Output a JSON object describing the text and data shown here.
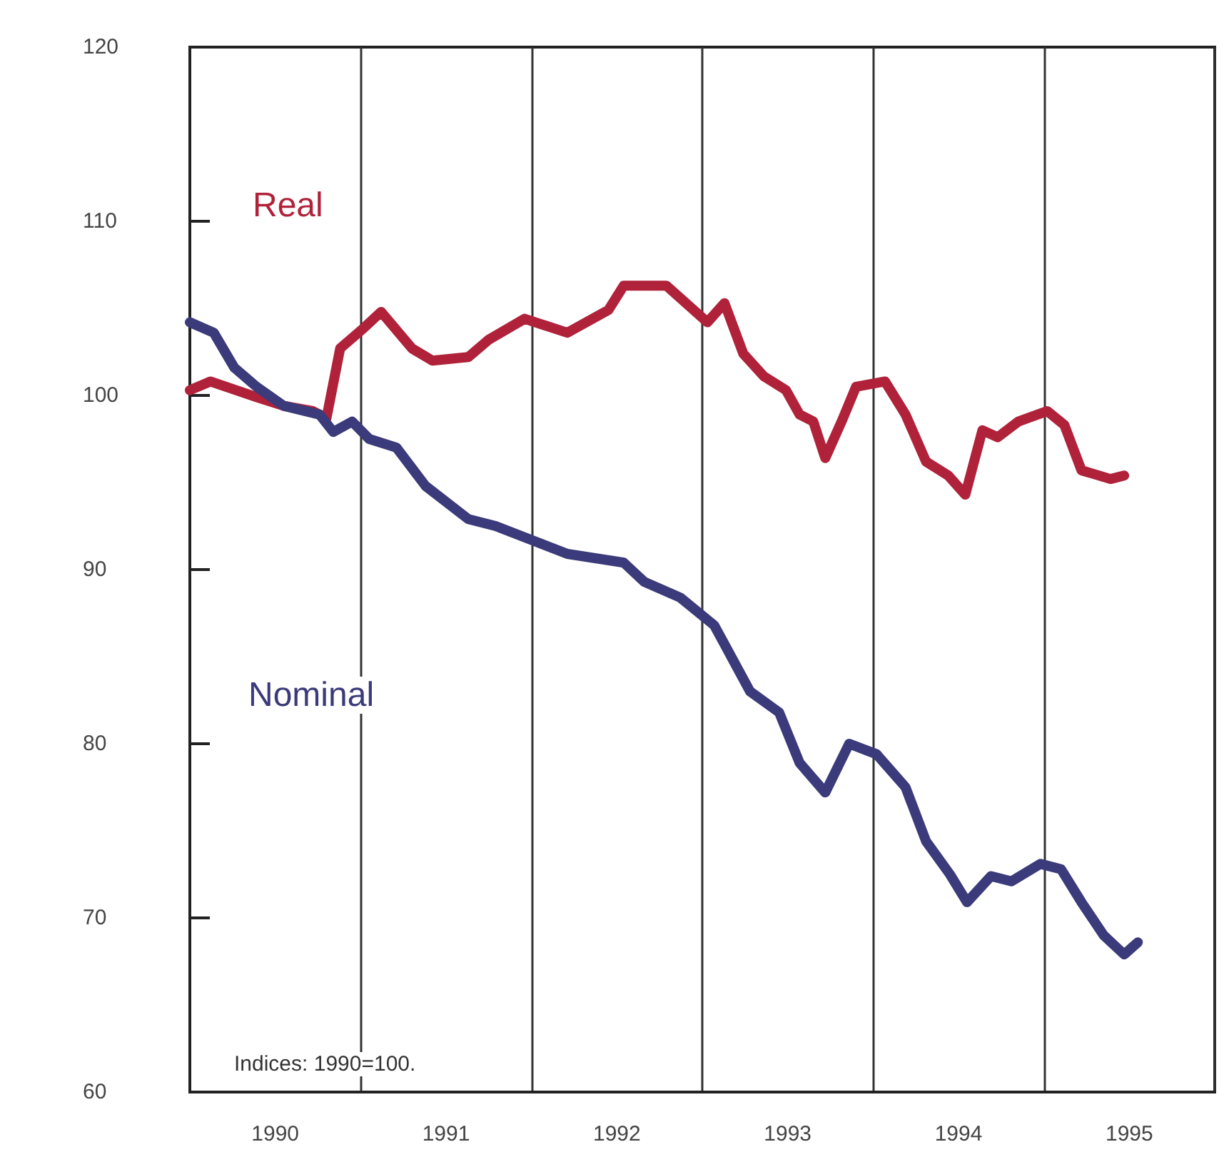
{
  "chart_data": {
    "type": "line",
    "annotations": [
      "Indices: 1990=100."
    ],
    "xlim": [
      1990,
      1996
    ],
    "xticks": [
      {
        "value": 1990,
        "label": null
      },
      {
        "value": 1990.5,
        "label": "1990"
      },
      {
        "value": 1991,
        "label": null
      },
      {
        "value": 1991.5,
        "label": "1991"
      },
      {
        "value": 1992,
        "label": null
      },
      {
        "value": 1992.5,
        "label": "1992"
      },
      {
        "value": 1993,
        "label": null
      },
      {
        "value": 1993.5,
        "label": "1993"
      },
      {
        "value": 1994,
        "label": null
      },
      {
        "value": 1994.5,
        "label": "1994"
      },
      {
        "value": 1995,
        "label": null
      },
      {
        "value": 1995.5,
        "label": "1995"
      },
      {
        "value": 1996,
        "label": null
      }
    ],
    "ylim": [
      60,
      120
    ],
    "yticks": [
      60,
      70,
      80,
      90,
      100,
      110,
      120
    ],
    "grid": "x",
    "legend": false,
    "marker": "none",
    "line_style": "solid",
    "series": [
      {
        "name": "Real",
        "color": "#b0223a",
        "x": [
          1990.0,
          1990.12,
          1990.39,
          1990.55,
          1990.72,
          1990.8,
          1990.88,
          1991.01,
          1991.12,
          1991.3,
          1991.42,
          1991.63,
          1991.75,
          1991.96,
          1992.21,
          1992.45,
          1992.54,
          1992.79,
          1993.03,
          1993.13,
          1993.24,
          1993.36,
          1993.49,
          1993.57,
          1993.65,
          1993.72,
          1993.82,
          1993.9,
          1994.07,
          1994.19,
          1994.31,
          1994.44,
          1994.54,
          1994.64,
          1994.73,
          1994.85,
          1995.02,
          1995.12,
          1995.22,
          1995.39,
          1995.47
        ],
        "values": [
          100.3,
          100.8,
          99.9,
          99.4,
          99.1,
          98.7,
          102.7,
          103.8,
          104.8,
          102.7,
          102.0,
          102.2,
          103.2,
          104.4,
          103.6,
          104.9,
          106.3,
          106.3,
          104.2,
          105.3,
          102.4,
          101.1,
          100.3,
          98.9,
          98.5,
          96.4,
          98.6,
          100.5,
          100.8,
          98.9,
          96.2,
          95.4,
          94.3,
          98.0,
          97.6,
          98.5,
          99.1,
          98.3,
          95.7,
          95.2,
          95.4
        ]
      },
      {
        "name": "Nominal",
        "color": "#3b3a7a",
        "x": [
          1990.0,
          1990.14,
          1990.26,
          1990.39,
          1990.55,
          1990.76,
          1990.84,
          1990.95,
          1991.05,
          1991.21,
          1991.38,
          1991.63,
          1991.79,
          1992.0,
          1992.21,
          1992.54,
          1992.66,
          1992.87,
          1993.07,
          1993.28,
          1993.45,
          1993.57,
          1993.72,
          1993.86,
          1994.02,
          1994.19,
          1994.31,
          1994.45,
          1994.55,
          1994.69,
          1994.81,
          1994.98,
          1995.1,
          1995.22,
          1995.35,
          1995.47,
          1995.55
        ],
        "values": [
          104.2,
          103.6,
          101.6,
          100.5,
          99.4,
          98.9,
          97.9,
          98.5,
          97.5,
          97.0,
          94.8,
          92.9,
          92.5,
          91.7,
          90.9,
          90.4,
          89.3,
          88.4,
          86.8,
          83.0,
          81.8,
          78.9,
          77.2,
          80.0,
          79.4,
          77.5,
          74.4,
          72.5,
          70.9,
          72.4,
          72.1,
          73.1,
          72.8,
          70.9,
          69.0,
          67.9,
          68.6
        ]
      }
    ]
  }
}
